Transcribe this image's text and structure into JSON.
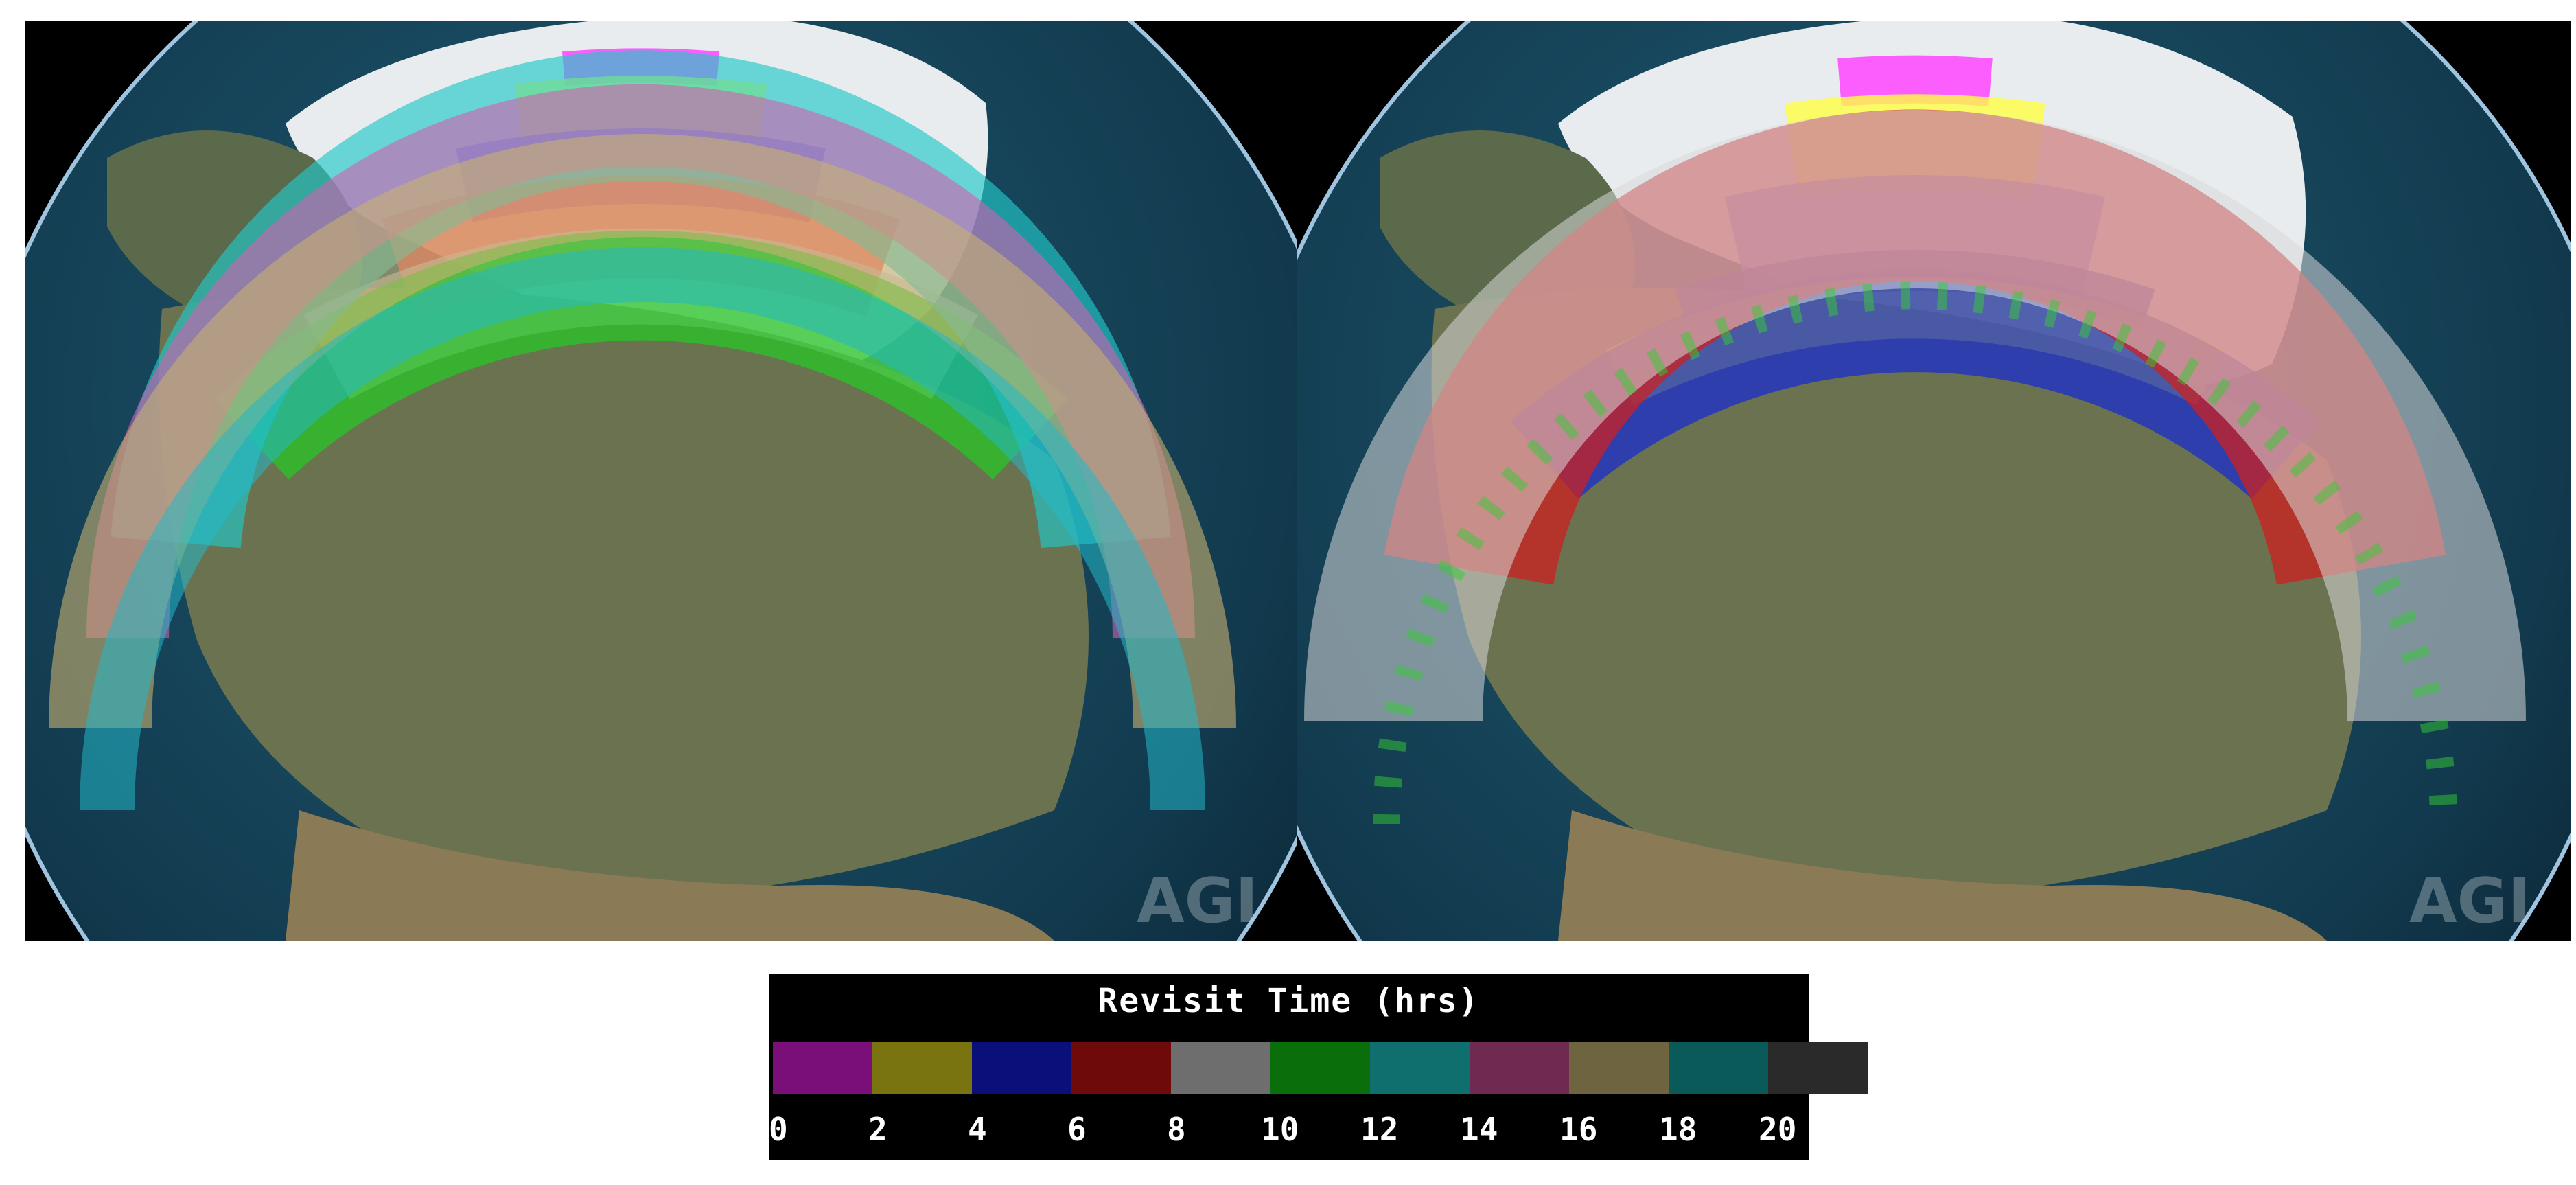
{
  "legend": {
    "title": "Revisit Time (hrs)",
    "ticks": [
      "0",
      "2",
      "4",
      "6",
      "8",
      "10",
      "12",
      "14",
      "16",
      "18",
      "20"
    ],
    "colors": [
      "#7a0f7a",
      "#7a7410",
      "#0a0f7a",
      "#6e0a0a",
      "#6e6e6e",
      "#0a6e0a",
      "#0f6e6e",
      "#6e2a50",
      "#6e6440",
      "#0a5a5a",
      "#2a2a2a"
    ]
  },
  "watermark": "AGI",
  "left_map": {
    "band_colors": [
      "#ff44ff",
      "#ffff44",
      "#6a6aff",
      "#ff4b4b",
      "#c8c8c8",
      "#22cc22",
      "#22c8c8",
      "#d060b0",
      "#c8b070",
      "#22b8c8"
    ]
  },
  "right_map": {
    "band_colors": [
      "#ff44ff",
      "#ffff44",
      "#6a6aff",
      "#1a2ecc",
      "#ffff22",
      "#1a2ecc",
      "#cc2020",
      "#d8d8d8",
      "#33cc33"
    ]
  }
}
